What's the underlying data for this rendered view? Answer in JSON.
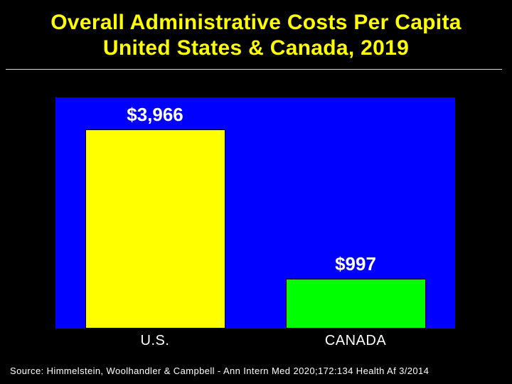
{
  "chart_data": {
    "type": "bar",
    "title_line1": "Overall Administrative Costs Per Capita",
    "title_line2": "United States & Canada, 2019",
    "categories": [
      "U.S.",
      "CANADA"
    ],
    "values": [
      3966,
      997
    ],
    "value_labels": [
      "$3,966",
      "$997"
    ],
    "ylim": [
      0,
      4600
    ],
    "xlabel": "",
    "ylabel": "",
    "colors": {
      "plot_bg": "#0000ff",
      "bars": [
        "#ffff00",
        "#00ff00"
      ],
      "title": "#ffff00",
      "text": "#ffffff"
    },
    "grid": false,
    "source": "Source: Himmelstein, Woolhandler & Campbell - Ann Intern Med 2020;172:134 Health Af 3/2014"
  }
}
